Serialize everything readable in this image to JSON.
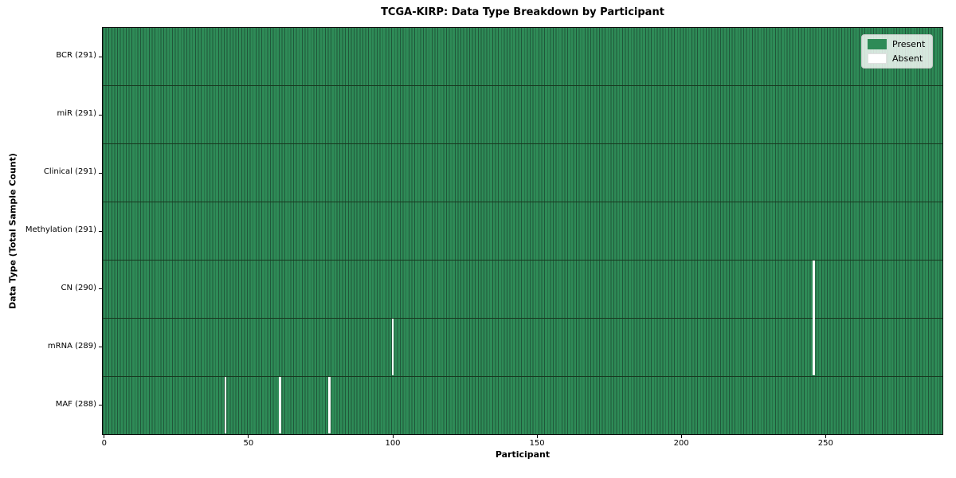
{
  "chart_data": {
    "type": "heatmap",
    "title": "TCGA-KIRP: Data Type Breakdown by Participant",
    "xlabel": "Participant",
    "ylabel": "Data Type (Total Sample Count)",
    "n_participants": 291,
    "xlim": [
      -0.5,
      290.5
    ],
    "x_ticks": [
      0,
      50,
      100,
      150,
      200,
      250
    ],
    "rows": [
      {
        "label": "BCR",
        "count": 291,
        "tick_label": "BCR (291)",
        "missing": []
      },
      {
        "label": "miR",
        "count": 291,
        "tick_label": "miR (291)",
        "missing": []
      },
      {
        "label": "Clinical",
        "count": 291,
        "tick_label": "Clinical (291)",
        "missing": []
      },
      {
        "label": "Methylation",
        "count": 291,
        "tick_label": "Methylation (291)",
        "missing": []
      },
      {
        "label": "CN",
        "count": 290,
        "tick_label": "CN (290)",
        "missing": [
          246
        ]
      },
      {
        "label": "mRNA",
        "count": 289,
        "tick_label": "mRNA (289)",
        "missing": [
          100,
          246
        ]
      },
      {
        "label": "MAF",
        "count": 288,
        "tick_label": "MAF (288)",
        "missing": [
          42,
          61,
          78
        ]
      }
    ],
    "legend": {
      "position": "upper right",
      "items": [
        {
          "label": "Present",
          "color": "#2e8b57"
        },
        {
          "label": "Absent",
          "color": "#ffffff"
        }
      ]
    },
    "colors": {
      "present": "#2e8b57",
      "absent": "#ffffff",
      "bar_edge": "#20573a",
      "row_separator": "#17381f",
      "spine": "#0d0d0d"
    }
  }
}
